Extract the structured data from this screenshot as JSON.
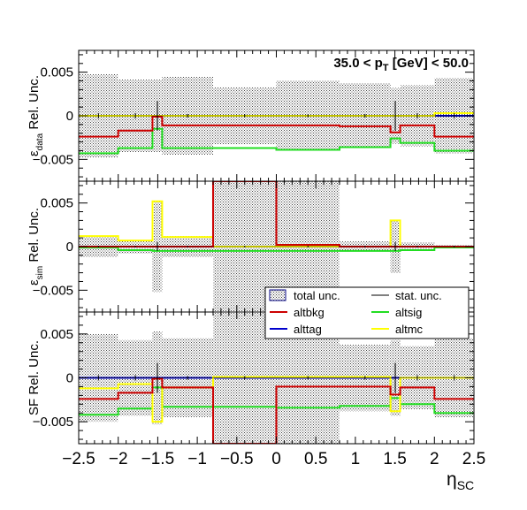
{
  "chart_data": {
    "type": "step-line",
    "title": "35.0 < p_T [GeV] < 50.0",
    "title_parts": {
      "pre": "35.0 < p",
      "sub": "T",
      "post": " [GeV] < 50.0"
    },
    "xlabel": {
      "main": "η",
      "sub": "SC"
    },
    "xlim": [
      -2.5,
      2.5
    ],
    "xticks": [
      "−2.5",
      "−2",
      "−1.5",
      "−1",
      "−0.5",
      "0",
      "0.5",
      "1",
      "1.5",
      "2",
      "2.5"
    ],
    "xtick_values": [
      -2.5,
      -2,
      -1.5,
      -1,
      -0.5,
      0,
      0.5,
      1,
      1.5,
      2,
      2.5
    ],
    "bin_edges": [
      -2.5,
      -2.0,
      -1.566,
      -1.444,
      -0.8,
      0.0,
      0.8,
      1.444,
      1.566,
      2.0,
      2.5
    ],
    "bin_centers": [
      -2.25,
      -1.783,
      -1.505,
      -1.122,
      -0.4,
      0.4,
      1.122,
      1.505,
      1.783,
      2.25
    ],
    "colors": {
      "altbkg": "#cc0000",
      "altsig": "#22dd22",
      "alttag": "#0000cc",
      "altmc": "#ffff00",
      "stat": "#000000",
      "total_fill": "#555555"
    },
    "legend": {
      "placement": "middle-right",
      "entries": [
        {
          "key": "total",
          "label": "total unc.",
          "style": "box"
        },
        {
          "key": "stat",
          "label": "stat. unc.",
          "style": "line"
        },
        {
          "key": "altbkg",
          "label": "altbkg",
          "style": "line"
        },
        {
          "key": "altsig",
          "label": "altsig",
          "style": "line"
        },
        {
          "key": "alttag",
          "label": "alttag",
          "style": "line"
        },
        {
          "key": "altmc",
          "label": "altmc",
          "style": "line"
        }
      ]
    },
    "panels": [
      {
        "name": "data",
        "ylabel": {
          "pre": "ε",
          "sub": "data",
          "post": " Rel. Unc."
        },
        "ylim": [
          -0.0075,
          0.0075
        ],
        "yticks": [
          "0.005",
          "0",
          "−0.005"
        ],
        "ytick_values": [
          0.005,
          0,
          -0.005
        ],
        "series": [
          {
            "key": "altbkg",
            "values": [
              -0.0024,
              -0.0017,
              -0.0001,
              -0.0011,
              -0.0011,
              -0.0011,
              -0.0012,
              -0.0019,
              -0.0011,
              -0.0024
            ]
          },
          {
            "key": "altsig",
            "values": [
              -0.0043,
              -0.0037,
              -0.0015,
              -0.0037,
              -0.0037,
              -0.0039,
              -0.0036,
              -0.0026,
              -0.0031,
              -0.004
            ]
          },
          {
            "key": "alttag",
            "values": [
              0.0,
              0.0,
              0.0,
              0.0,
              0.0,
              0.0,
              0.0,
              0.0,
              0.0,
              0.0
            ]
          },
          {
            "key": "altmc",
            "values": [
              0.0,
              0.0,
              0.0,
              0.0,
              0.0,
              0.0,
              0.0,
              0.0,
              0.0,
              0.0003
            ]
          }
        ],
        "total": [
          0.0048,
          0.0042,
          0.0042,
          0.0045,
          0.0033,
          0.004,
          0.0037,
          0.0032,
          0.0035,
          0.0043
        ],
        "stat": [
          0.0003,
          0.0003,
          0.0017,
          0.0002,
          0.0002,
          0.0002,
          0.0002,
          0.0017,
          0.0003,
          0.0003
        ]
      },
      {
        "name": "sim",
        "ylabel": {
          "pre": "ε",
          "sub": "sim",
          "post": " Rel. Unc."
        },
        "ylim": [
          -0.0075,
          0.0075
        ],
        "yticks": [
          "0.005",
          "0",
          "−0.005"
        ],
        "ytick_values": [
          0.005,
          0,
          -0.005
        ],
        "series": [
          {
            "key": "altbkg",
            "values": [
              0.0,
              0.0,
              0.0,
              0.0,
              0.008,
              0.0002,
              0.0,
              0.0,
              0.0,
              0.0
            ]
          },
          {
            "key": "altsig",
            "values": [
              -0.0001,
              -0.0004,
              -0.0005,
              -0.0005,
              -0.0005,
              -0.0005,
              -0.0005,
              -0.0005,
              -0.0004,
              -0.0001
            ]
          },
          {
            "key": "alttag",
            "values": [
              0.0,
              0.0,
              0.0,
              0.0,
              0.0,
              0.0,
              0.0,
              0.0,
              0.0,
              0.0
            ]
          },
          {
            "key": "altmc",
            "values": [
              0.0012,
              0.0007,
              0.0052,
              0.0011,
              0.0,
              0.0,
              0.0,
              0.003,
              0.0,
              0.0
            ]
          }
        ],
        "total": [
          0.0012,
          0.0008,
          0.0052,
          0.0012,
          0.0075,
          0.0075,
          0.0006,
          0.003,
          0.0005,
          0.0002
        ],
        "stat": [
          0.0001,
          0.0001,
          0.0005,
          0.0001,
          0.0001,
          0.0001,
          0.0001,
          0.0005,
          0.0001,
          0.0001
        ]
      },
      {
        "name": "sf",
        "ylabel": {
          "pre": "SF",
          "sub": "",
          "post": " Rel. Unc."
        },
        "ylim": [
          -0.0075,
          0.0075
        ],
        "yticks": [
          "0.005",
          "0",
          "−0.005"
        ],
        "ytick_values": [
          0.005,
          0,
          -0.005
        ],
        "series": [
          {
            "key": "altbkg",
            "values": [
              -0.0024,
              -0.0017,
              -0.0001,
              -0.0011,
              -0.008,
              -0.001,
              -0.001,
              -0.0019,
              -0.0011,
              -0.0024
            ]
          },
          {
            "key": "altsig",
            "values": [
              -0.0042,
              -0.0035,
              -0.0011,
              -0.0033,
              -0.0033,
              -0.0034,
              -0.0032,
              -0.0023,
              -0.003,
              -0.004
            ]
          },
          {
            "key": "alttag",
            "values": [
              0.0,
              0.0,
              0.0,
              0.0,
              0.0,
              0.0,
              0.0,
              0.0,
              0.0,
              0.0
            ]
          },
          {
            "key": "altmc",
            "values": [
              -0.0012,
              -0.0007,
              -0.005,
              -0.0011,
              0.0001,
              0.0001,
              0.0001,
              -0.0038,
              0.0,
              0.0
            ]
          }
        ],
        "total": [
          0.005,
          0.0043,
          0.0053,
          0.0045,
          0.0075,
          0.0075,
          0.0038,
          0.0043,
          0.0036,
          0.0045
        ],
        "stat": [
          0.0003,
          0.0003,
          0.0017,
          0.0002,
          0.0002,
          0.0002,
          0.0002,
          0.0017,
          0.0003,
          0.0003
        ]
      }
    ]
  }
}
